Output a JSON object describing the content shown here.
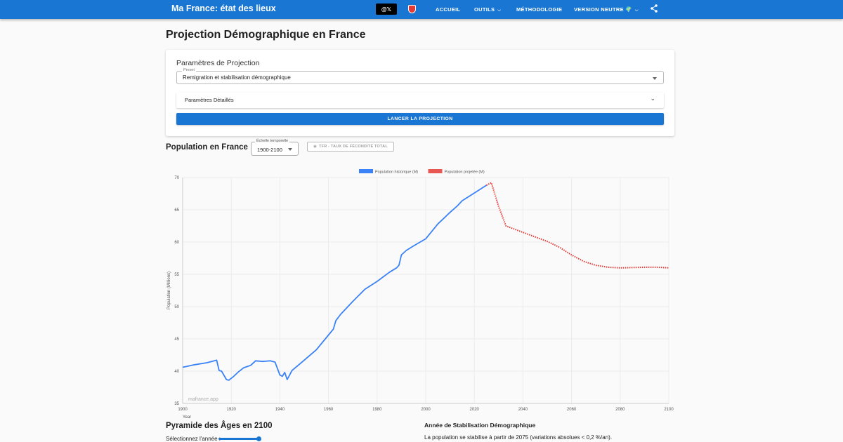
{
  "header": {
    "brand": "Ma France: état des lieux",
    "x_button_label": "@𝕏",
    "nav": [
      {
        "label": "ACCUEIL",
        "has_dropdown": false
      },
      {
        "label": "OUTILS",
        "has_dropdown": true
      },
      {
        "label": "MÉTHODOLOGIE",
        "has_dropdown": false
      },
      {
        "label": "VERSION NEUTRE 🌍",
        "has_dropdown": true
      }
    ],
    "icons": [
      "shield-icon",
      "share-icon"
    ]
  },
  "page": {
    "title": "Projection Démographique en France"
  },
  "params_card": {
    "title": "Paramètres de Projection",
    "preset_label": "Preset",
    "preset_value": "Remigration et stabilisation démographique",
    "details_label": "Paramètres Détaillés",
    "launch_label": "LANCER LA PROJECTION"
  },
  "population_section": {
    "title": "Population en France",
    "scale_label": "Échelle temporelle",
    "scale_value": "1900-2100",
    "tfr_button_label": "TFR - TAUX DE FÉCONDITÉ TOTAL"
  },
  "chart_data": {
    "type": "line",
    "xlabel": "Year",
    "ylabel": "Population (Millions)",
    "xlim": [
      1900,
      2100
    ],
    "ylim": [
      35,
      70
    ],
    "x_ticks": [
      "1900",
      "1920",
      "1940",
      "1960",
      "1980",
      "2000",
      "2020",
      "2040",
      "2060",
      "2080",
      "2100"
    ],
    "y_ticks": [
      "35",
      "40",
      "45",
      "50",
      "55",
      "60",
      "65",
      "70"
    ],
    "grid": true,
    "legend_position": "top-center",
    "watermark": "mafrance.app",
    "colors": {
      "historical": "#3b82f6",
      "projected": "#e53935"
    },
    "series": [
      {
        "name": "Population historique (M)",
        "style": "solid",
        "points": [
          [
            1900,
            40.6
          ],
          [
            1905,
            41.0
          ],
          [
            1910,
            41.3
          ],
          [
            1914,
            41.7
          ],
          [
            1915,
            40.1
          ],
          [
            1916,
            40.0
          ],
          [
            1918,
            38.7
          ],
          [
            1919,
            38.6
          ],
          [
            1921,
            39.2
          ],
          [
            1923,
            39.9
          ],
          [
            1925,
            40.5
          ],
          [
            1928,
            40.9
          ],
          [
            1930,
            41.6
          ],
          [
            1933,
            41.5
          ],
          [
            1936,
            41.6
          ],
          [
            1938,
            41.4
          ],
          [
            1940,
            39.4
          ],
          [
            1941,
            39.2
          ],
          [
            1942,
            39.8
          ],
          [
            1943,
            38.7
          ],
          [
            1945,
            40.1
          ],
          [
            1950,
            41.7
          ],
          [
            1955,
            43.3
          ],
          [
            1960,
            45.6
          ],
          [
            1962,
            46.5
          ],
          [
            1963,
            47.8
          ],
          [
            1965,
            48.8
          ],
          [
            1970,
            50.8
          ],
          [
            1975,
            52.7
          ],
          [
            1980,
            53.9
          ],
          [
            1985,
            55.3
          ],
          [
            1988,
            56.0
          ],
          [
            1989,
            56.4
          ],
          [
            1990,
            58.0
          ],
          [
            1992,
            58.7
          ],
          [
            1995,
            59.4
          ],
          [
            2000,
            60.5
          ],
          [
            2005,
            62.8
          ],
          [
            2010,
            64.6
          ],
          [
            2013,
            65.6
          ],
          [
            2015,
            66.4
          ],
          [
            2020,
            67.6
          ],
          [
            2025,
            68.8
          ]
        ]
      },
      {
        "name": "Population projetée (M)",
        "style": "dotted",
        "points": [
          [
            2025,
            68.8
          ],
          [
            2027,
            69.2
          ],
          [
            2030,
            65.5
          ],
          [
            2033,
            62.5
          ],
          [
            2040,
            61.5
          ],
          [
            2050,
            60.1
          ],
          [
            2055,
            59.2
          ],
          [
            2060,
            58.0
          ],
          [
            2065,
            57.0
          ],
          [
            2070,
            56.4
          ],
          [
            2075,
            56.1
          ],
          [
            2080,
            56.0
          ],
          [
            2090,
            56.1
          ],
          [
            2095,
            56.1
          ],
          [
            2100,
            56.0
          ]
        ]
      }
    ]
  },
  "pyramid_section": {
    "title": "Pyramide des Âges en 2100",
    "slider_label": "Sélectionnez l'année :",
    "slider_value": 1.0
  },
  "stabilization": {
    "title": "Année de Stabilisation Démographique",
    "text": "La population se stabilise à partir de 2075 (variations absolues < 0,2 %/an)."
  }
}
